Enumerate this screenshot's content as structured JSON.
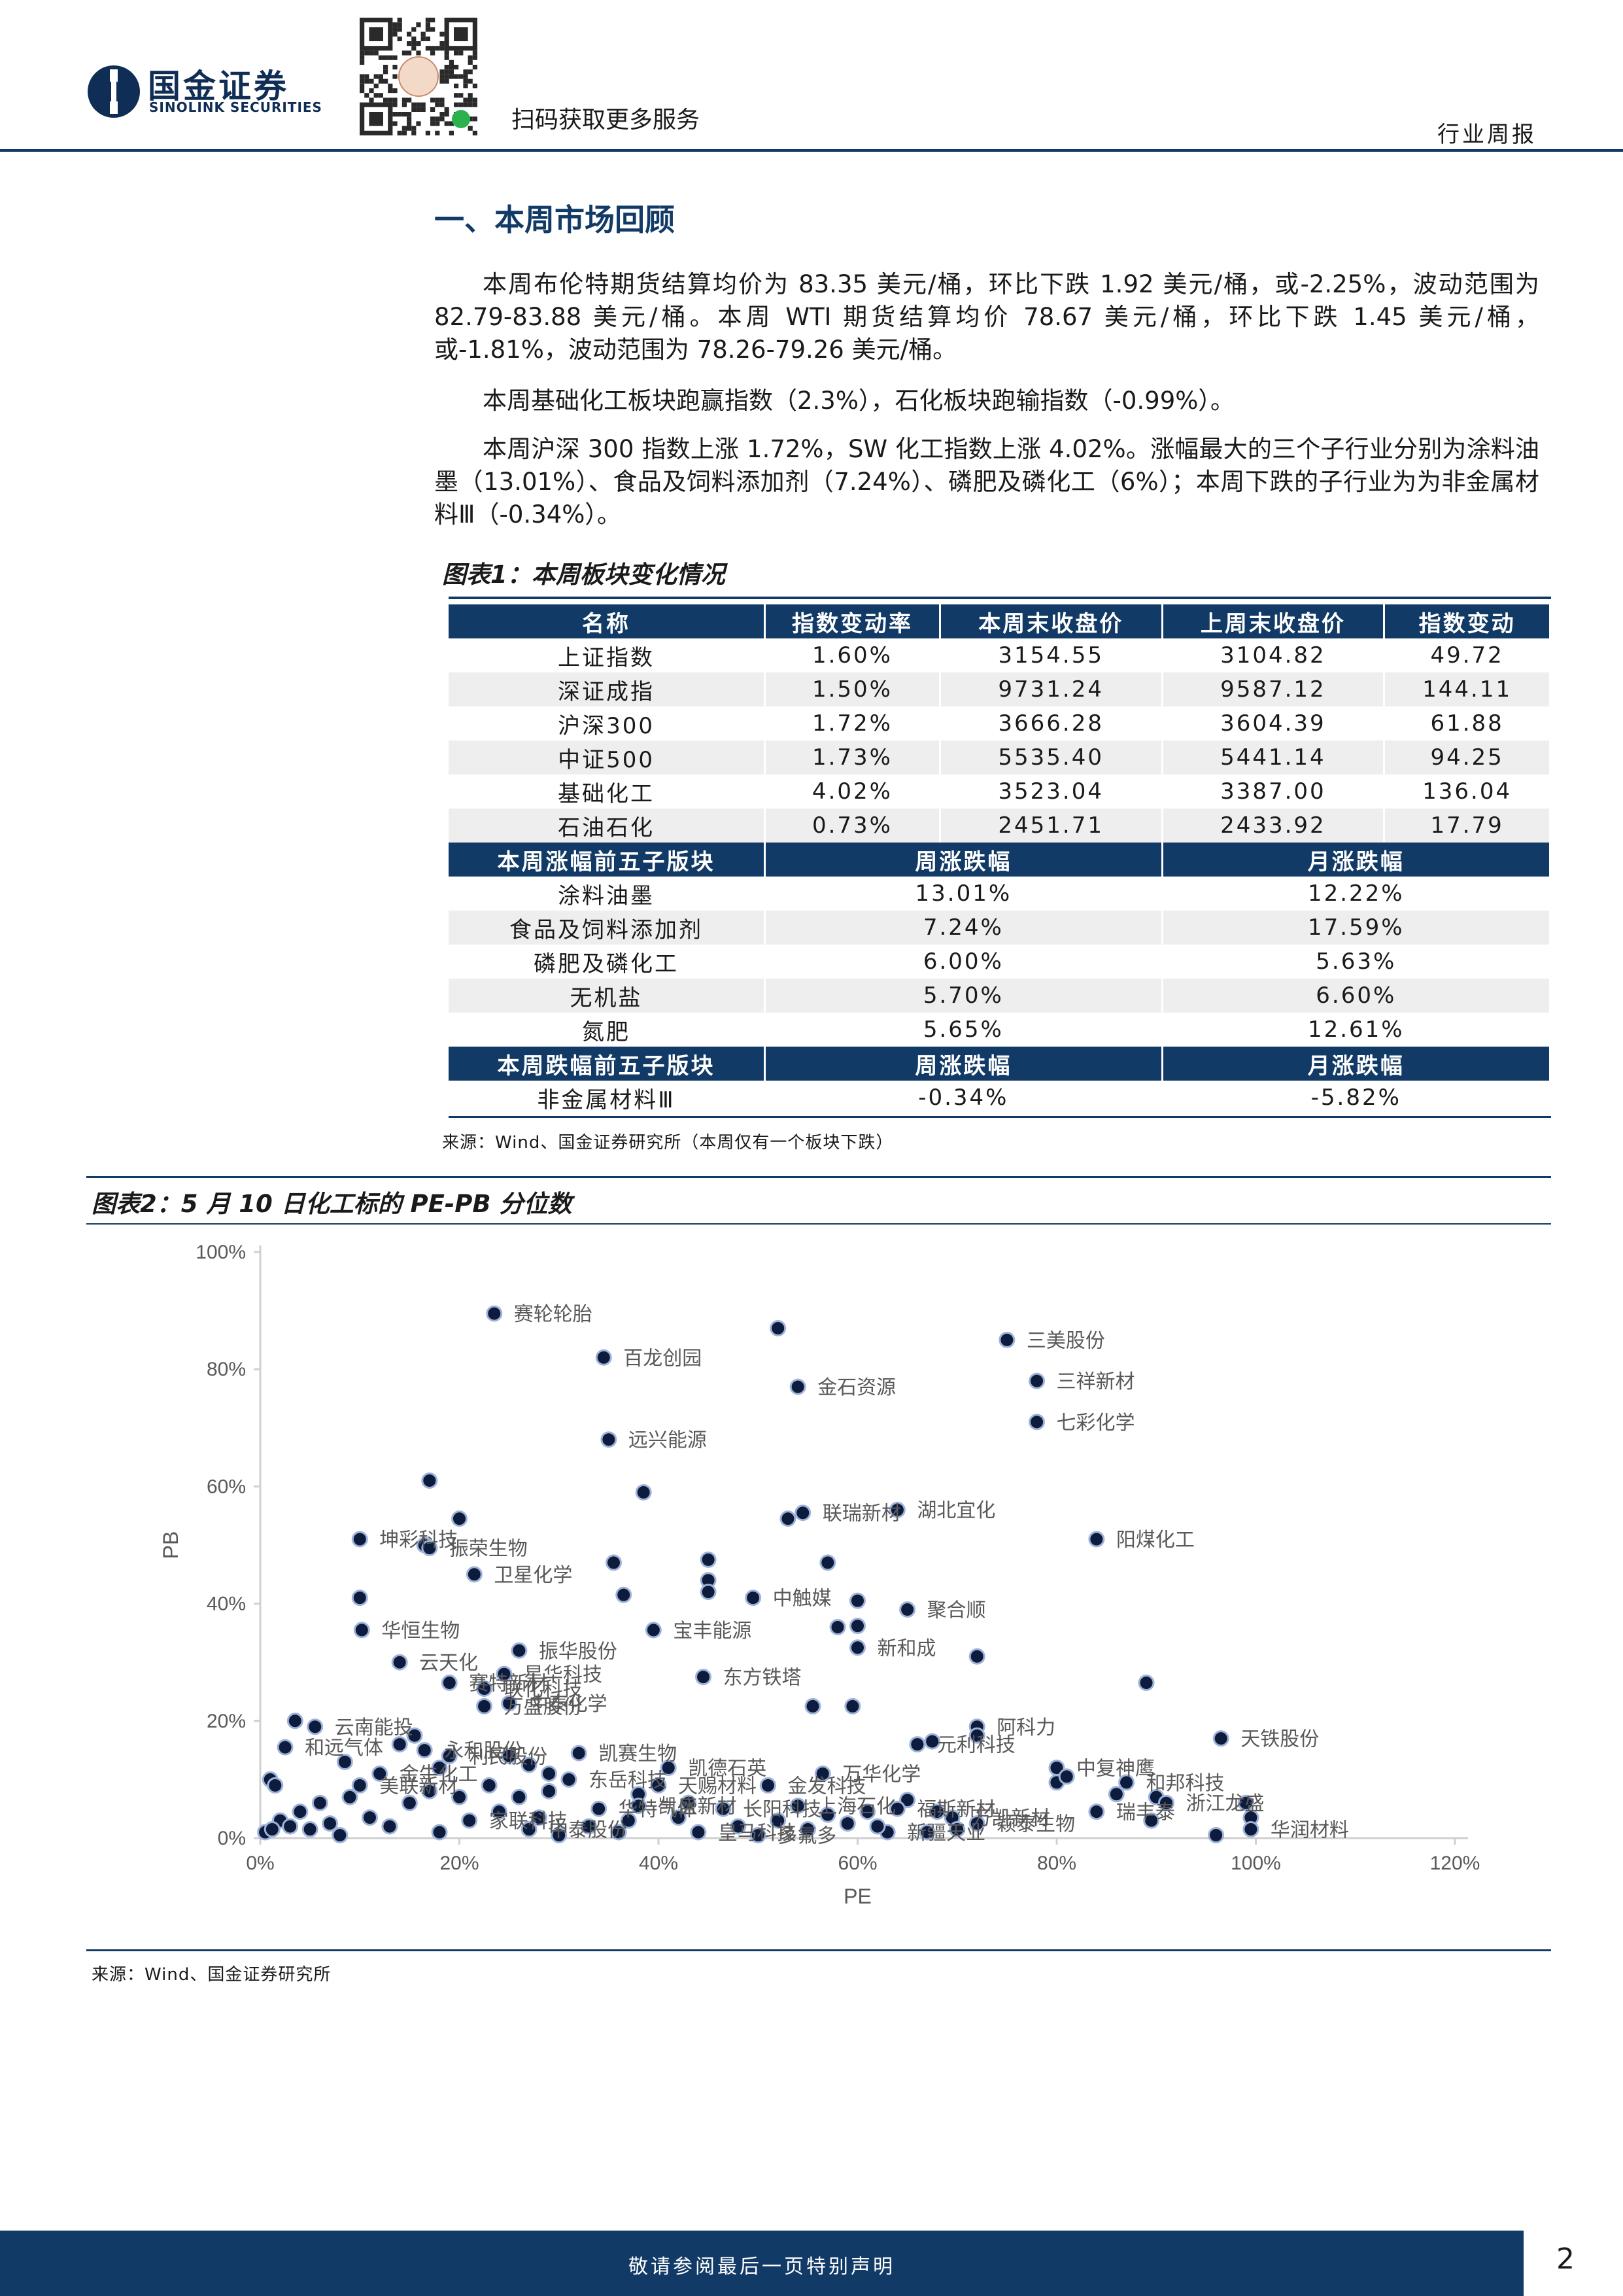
{
  "header": {
    "brand_cn": "国金证券",
    "brand_en": "SINOLINK SECURITIES",
    "qr_caption": "扫码获取更多服务",
    "report_type": "行业周报"
  },
  "section": {
    "title": "一、本周市场回顾",
    "paragraphs": [
      "本周布伦特期货结算均价为 83.35 美元/桶，环比下跌 1.92 美元/桶，或-2.25%，波动范围为 82.79-83.88 美元/桶。本周 WTI 期货结算均价 78.67 美元/桶，环比下跌 1.45 美元/桶，或-1.81%，波动范围为 78.26-79.26 美元/桶。",
      "本周基础化工板块跑赢指数（2.3%），石化板块跑输指数（-0.99%）。",
      "本周沪深 300 指数上涨 1.72%，SW 化工指数上涨 4.02%。涨幅最大的三个子行业分别为涂料油墨（13.01%）、食品及饲料添加剂（7.24%）、磷肥及磷化工（6%）；本周下跌的子行业为为非金属材料Ⅲ（-0.34%）。"
    ]
  },
  "table1": {
    "title": "图表1：本周板块变化情况",
    "headers": [
      "名称",
      "指数变动率",
      "本周末收盘价",
      "上周末收盘价",
      "指数变动"
    ],
    "rows": [
      [
        "上证指数",
        "1.60%",
        "3154.55",
        "3104.82",
        "49.72"
      ],
      [
        "深证成指",
        "1.50%",
        "9731.24",
        "9587.12",
        "144.11"
      ],
      [
        "沪深300",
        "1.72%",
        "3666.28",
        "3604.39",
        "61.88"
      ],
      [
        "中证500",
        "1.73%",
        "5535.40",
        "5441.14",
        "94.25"
      ],
      [
        "基础化工",
        "4.02%",
        "3523.04",
        "3387.00",
        "136.04"
      ],
      [
        "石油石化",
        "0.73%",
        "2451.71",
        "2433.92",
        "17.79"
      ]
    ],
    "top_header": [
      "本周涨幅前五子版块",
      "周涨跌幅",
      "月涨跌幅"
    ],
    "top_rows": [
      [
        "涂料油墨",
        "13.01%",
        "12.22%"
      ],
      [
        "食品及饲料添加剂",
        "7.24%",
        "17.59%"
      ],
      [
        "磷肥及磷化工",
        "6.00%",
        "5.63%"
      ],
      [
        "无机盐",
        "5.70%",
        "6.60%"
      ],
      [
        "氮肥",
        "5.65%",
        "12.61%"
      ]
    ],
    "bottom_header": [
      "本周跌幅前五子版块",
      "周涨跌幅",
      "月涨跌幅"
    ],
    "bottom_rows": [
      [
        "非金属材料Ⅲ",
        "-0.34%",
        "-5.82%"
      ]
    ],
    "source": "来源：Wind、国金证券研究所（本周仅有一个板块下跌）"
  },
  "chart2_meta": {
    "title": "图表2：5 月 10 日化工标的 PE-PB 分位数",
    "source": "来源：Wind、国金证券研究所"
  },
  "chart_data": {
    "type": "scatter",
    "title": "",
    "xlabel": "PE",
    "ylabel": "PB",
    "xlim": [
      0,
      1.2
    ],
    "ylim": [
      0,
      1.0
    ],
    "x_ticks": [
      "0%",
      "20%",
      "40%",
      "60%",
      "80%",
      "100%",
      "120%"
    ],
    "y_ticks": [
      "0%",
      "20%",
      "40%",
      "60%",
      "80%",
      "100%"
    ],
    "grid": false,
    "legend": "none",
    "point_color": "#0d1b3d",
    "points": [
      {
        "x": 0.235,
        "y": 0.895,
        "label": "赛轮轮胎"
      },
      {
        "x": 0.345,
        "y": 0.82,
        "label": "百龙创园"
      },
      {
        "x": 0.52,
        "y": 0.87,
        "label": ""
      },
      {
        "x": 0.54,
        "y": 0.77,
        "label": "金石资源"
      },
      {
        "x": 0.75,
        "y": 0.85,
        "label": "三美股份"
      },
      {
        "x": 0.78,
        "y": 0.78,
        "label": "三祥新材"
      },
      {
        "x": 0.78,
        "y": 0.71,
        "label": "七彩化学"
      },
      {
        "x": 0.35,
        "y": 0.68,
        "label": "远兴能源"
      },
      {
        "x": 0.17,
        "y": 0.61,
        "label": ""
      },
      {
        "x": 0.385,
        "y": 0.59,
        "label": ""
      },
      {
        "x": 0.53,
        "y": 0.545,
        "label": ""
      },
      {
        "x": 0.545,
        "y": 0.555,
        "label": "联瑞新材"
      },
      {
        "x": 0.64,
        "y": 0.56,
        "label": "湖北宜化"
      },
      {
        "x": 0.84,
        "y": 0.51,
        "label": "阳煤化工"
      },
      {
        "x": 0.2,
        "y": 0.545,
        "label": ""
      },
      {
        "x": 0.1,
        "y": 0.51,
        "label": "坤彩科技"
      },
      {
        "x": 0.165,
        "y": 0.5,
        "label": ""
      },
      {
        "x": 0.17,
        "y": 0.495,
        "label": "振荣生物"
      },
      {
        "x": 0.215,
        "y": 0.45,
        "label": "卫星化学"
      },
      {
        "x": 0.355,
        "y": 0.47,
        "label": ""
      },
      {
        "x": 0.45,
        "y": 0.475,
        "label": ""
      },
      {
        "x": 0.45,
        "y": 0.44,
        "label": ""
      },
      {
        "x": 0.45,
        "y": 0.42,
        "label": ""
      },
      {
        "x": 0.57,
        "y": 0.47,
        "label": ""
      },
      {
        "x": 0.365,
        "y": 0.415,
        "label": ""
      },
      {
        "x": 0.495,
        "y": 0.41,
        "label": "中触媒"
      },
      {
        "x": 0.6,
        "y": 0.405,
        "label": ""
      },
      {
        "x": 0.65,
        "y": 0.39,
        "label": "聚合顺"
      },
      {
        "x": 0.1,
        "y": 0.41,
        "label": ""
      },
      {
        "x": 0.102,
        "y": 0.355,
        "label": "华恒生物"
      },
      {
        "x": 0.395,
        "y": 0.355,
        "label": "宝丰能源"
      },
      {
        "x": 0.58,
        "y": 0.36,
        "label": ""
      },
      {
        "x": 0.6,
        "y": 0.362,
        "label": ""
      },
      {
        "x": 0.6,
        "y": 0.325,
        "label": "新和成"
      },
      {
        "x": 0.72,
        "y": 0.31,
        "label": ""
      },
      {
        "x": 0.26,
        "y": 0.32,
        "label": "振华股份"
      },
      {
        "x": 0.14,
        "y": 0.3,
        "label": "云天化"
      },
      {
        "x": 0.245,
        "y": 0.28,
        "label": "星华科技"
      },
      {
        "x": 0.19,
        "y": 0.265,
        "label": "赛特新材"
      },
      {
        "x": 0.225,
        "y": 0.255,
        "label": "联化科技"
      },
      {
        "x": 0.25,
        "y": 0.23,
        "label": "中泰化学"
      },
      {
        "x": 0.445,
        "y": 0.275,
        "label": "东方铁塔"
      },
      {
        "x": 0.89,
        "y": 0.265,
        "label": ""
      },
      {
        "x": 0.555,
        "y": 0.225,
        "label": ""
      },
      {
        "x": 0.595,
        "y": 0.225,
        "label": ""
      },
      {
        "x": 0.225,
        "y": 0.225,
        "label": "万盛股份"
      },
      {
        "x": 0.055,
        "y": 0.19,
        "label": "云南能投"
      },
      {
        "x": 0.035,
        "y": 0.2,
        "label": ""
      },
      {
        "x": 0.025,
        "y": 0.155,
        "label": "和远气体"
      },
      {
        "x": 0.165,
        "y": 0.15,
        "label": "永和股份"
      },
      {
        "x": 0.19,
        "y": 0.14,
        "label": "利民股份"
      },
      {
        "x": 0.32,
        "y": 0.145,
        "label": "凯赛生物"
      },
      {
        "x": 0.41,
        "y": 0.12,
        "label": "凯德石英"
      },
      {
        "x": 0.565,
        "y": 0.11,
        "label": "万华化学"
      },
      {
        "x": 0.66,
        "y": 0.16,
        "label": "元利科技"
      },
      {
        "x": 0.675,
        "y": 0.165,
        "label": ""
      },
      {
        "x": 0.72,
        "y": 0.19,
        "label": "阿科力"
      },
      {
        "x": 0.72,
        "y": 0.175,
        "label": ""
      },
      {
        "x": 0.965,
        "y": 0.17,
        "label": "天铁股份"
      },
      {
        "x": 0.8,
        "y": 0.12,
        "label": "中复神鹰"
      },
      {
        "x": 0.8,
        "y": 0.095,
        "label": ""
      },
      {
        "x": 0.81,
        "y": 0.105,
        "label": ""
      },
      {
        "x": 0.87,
        "y": 0.095,
        "label": "和邦科技"
      },
      {
        "x": 0.86,
        "y": 0.075,
        "label": ""
      },
      {
        "x": 0.9,
        "y": 0.07,
        "label": ""
      },
      {
        "x": 0.84,
        "y": 0.045,
        "label": "瑞丰泰"
      },
      {
        "x": 0.91,
        "y": 0.06,
        "label": "浙江龙盛"
      },
      {
        "x": 0.895,
        "y": 0.03,
        "label": ""
      },
      {
        "x": 0.99,
        "y": 0.06,
        "label": ""
      },
      {
        "x": 0.995,
        "y": 0.035,
        "label": ""
      },
      {
        "x": 0.995,
        "y": 0.015,
        "label": "华润材料"
      },
      {
        "x": 0.96,
        "y": 0.005,
        "label": ""
      },
      {
        "x": 0.72,
        "y": 0.025,
        "label": "颖泰生物"
      },
      {
        "x": 0.695,
        "y": 0.035,
        "label": "万凯新材"
      },
      {
        "x": 0.65,
        "y": 0.065,
        "label": ""
      },
      {
        "x": 0.64,
        "y": 0.05,
        "label": "福斯新材"
      },
      {
        "x": 0.63,
        "y": 0.01,
        "label": "新疆天业"
      },
      {
        "x": 0.51,
        "y": 0.09,
        "label": "金发科技"
      },
      {
        "x": 0.4,
        "y": 0.09,
        "label": "天赐材料"
      },
      {
        "x": 0.38,
        "y": 0.075,
        "label": ""
      },
      {
        "x": 0.465,
        "y": 0.05,
        "label": "长阳科技"
      },
      {
        "x": 0.38,
        "y": 0.055,
        "label": "凯盛新材"
      },
      {
        "x": 0.54,
        "y": 0.055,
        "label": "上海石化"
      },
      {
        "x": 0.5,
        "y": 0.005,
        "label": "多氟多"
      },
      {
        "x": 0.44,
        "y": 0.01,
        "label": "皇马科技"
      },
      {
        "x": 0.31,
        "y": 0.1,
        "label": "东岳科技"
      },
      {
        "x": 0.34,
        "y": 0.05,
        "label": "华特气体"
      },
      {
        "x": 0.27,
        "y": 0.015,
        "label": "中泰股份"
      },
      {
        "x": 0.21,
        "y": 0.03,
        "label": "家联科技"
      },
      {
        "x": 0.12,
        "y": 0.11,
        "label": "金牛化工"
      },
      {
        "x": 0.1,
        "y": 0.09,
        "label": "美联新材"
      },
      {
        "x": 0.09,
        "y": 0.07,
        "label": ""
      },
      {
        "x": 0.06,
        "y": 0.06,
        "label": ""
      },
      {
        "x": 0.04,
        "y": 0.045,
        "label": ""
      },
      {
        "x": 0.02,
        "y": 0.03,
        "label": ""
      },
      {
        "x": 0.01,
        "y": 0.1,
        "label": ""
      },
      {
        "x": 0.015,
        "y": 0.09,
        "label": ""
      },
      {
        "x": 0.005,
        "y": 0.01,
        "label": ""
      },
      {
        "x": 0.012,
        "y": 0.015,
        "label": ""
      },
      {
        "x": 0.03,
        "y": 0.02,
        "label": ""
      },
      {
        "x": 0.05,
        "y": 0.015,
        "label": ""
      },
      {
        "x": 0.07,
        "y": 0.025,
        "label": ""
      },
      {
        "x": 0.08,
        "y": 0.005,
        "label": ""
      },
      {
        "x": 0.11,
        "y": 0.035,
        "label": ""
      },
      {
        "x": 0.13,
        "y": 0.02,
        "label": ""
      },
      {
        "x": 0.15,
        "y": 0.06,
        "label": ""
      },
      {
        "x": 0.17,
        "y": 0.08,
        "label": ""
      },
      {
        "x": 0.18,
        "y": 0.01,
        "label": ""
      },
      {
        "x": 0.2,
        "y": 0.07,
        "label": ""
      },
      {
        "x": 0.23,
        "y": 0.09,
        "label": ""
      },
      {
        "x": 0.24,
        "y": 0.045,
        "label": ""
      },
      {
        "x": 0.26,
        "y": 0.07,
        "label": ""
      },
      {
        "x": 0.28,
        "y": 0.035,
        "label": ""
      },
      {
        "x": 0.29,
        "y": 0.08,
        "label": ""
      },
      {
        "x": 0.3,
        "y": 0.005,
        "label": ""
      },
      {
        "x": 0.33,
        "y": 0.02,
        "label": ""
      },
      {
        "x": 0.36,
        "y": 0.01,
        "label": ""
      },
      {
        "x": 0.37,
        "y": 0.03,
        "label": ""
      },
      {
        "x": 0.42,
        "y": 0.035,
        "label": ""
      },
      {
        "x": 0.43,
        "y": 0.06,
        "label": ""
      },
      {
        "x": 0.48,
        "y": 0.02,
        "label": ""
      },
      {
        "x": 0.52,
        "y": 0.03,
        "label": ""
      },
      {
        "x": 0.55,
        "y": 0.015,
        "label": ""
      },
      {
        "x": 0.57,
        "y": 0.04,
        "label": ""
      },
      {
        "x": 0.59,
        "y": 0.025,
        "label": ""
      },
      {
        "x": 0.61,
        "y": 0.045,
        "label": ""
      },
      {
        "x": 0.62,
        "y": 0.02,
        "label": ""
      },
      {
        "x": 0.67,
        "y": 0.01,
        "label": ""
      },
      {
        "x": 0.68,
        "y": 0.045,
        "label": ""
      },
      {
        "x": 0.7,
        "y": 0.015,
        "label": ""
      },
      {
        "x": 0.25,
        "y": 0.14,
        "label": ""
      },
      {
        "x": 0.27,
        "y": 0.125,
        "label": ""
      },
      {
        "x": 0.29,
        "y": 0.11,
        "label": ""
      },
      {
        "x": 0.18,
        "y": 0.12,
        "label": ""
      },
      {
        "x": 0.085,
        "y": 0.13,
        "label": ""
      },
      {
        "x": 0.14,
        "y": 0.16,
        "label": ""
      },
      {
        "x": 0.155,
        "y": 0.175,
        "label": ""
      }
    ]
  },
  "footer": {
    "disclaimer": "敬请参阅最后一页特别声明",
    "page_number": "2"
  }
}
